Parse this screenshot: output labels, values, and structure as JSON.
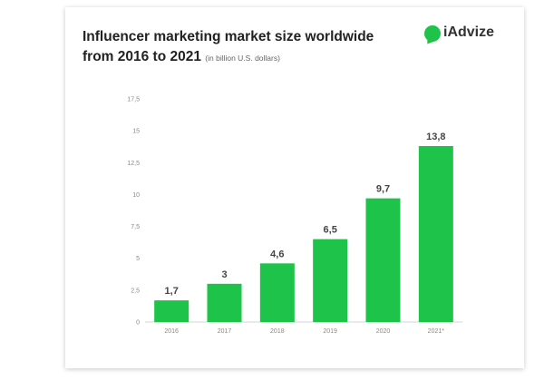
{
  "header": {
    "title_line1": "Influencer marketing market size worldwide",
    "title_line2": "from 2016 to 2021",
    "unit_note": "(in billion U.S. dollars)",
    "logo_text": "iAdvize"
  },
  "colors": {
    "bar": "#1ec44a",
    "brand": "#1ec44a"
  },
  "chart_data": {
    "type": "bar",
    "title": "Influencer marketing market size worldwide from 2016 to 2021",
    "subtitle": "(in billion U.S. dollars)",
    "categories": [
      "2016",
      "2017",
      "2018",
      "2019",
      "2020",
      "2021*"
    ],
    "values": [
      1.7,
      3,
      4.6,
      6.5,
      9.7,
      13.8
    ],
    "data_labels": [
      "1,7",
      "3",
      "4,6",
      "6,5",
      "9,7",
      "13,8"
    ],
    "ylim": [
      0,
      17.5
    ],
    "yticks": [
      0,
      2.5,
      5,
      7.5,
      10,
      12.5,
      15,
      17.5
    ],
    "ytick_labels": [
      "0",
      "2,5",
      "5",
      "7,5",
      "10",
      "12,5",
      "15",
      "17,5"
    ],
    "grid": false,
    "legend": "none"
  }
}
